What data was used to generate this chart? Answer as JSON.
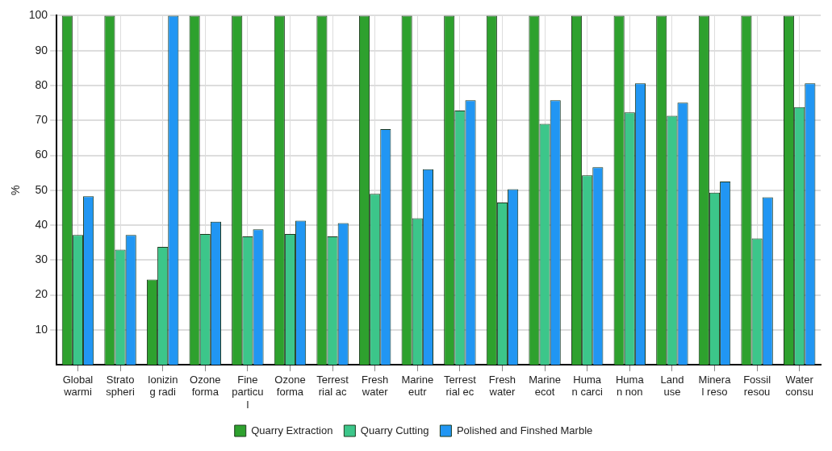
{
  "chart_data": {
    "type": "bar",
    "ylabel": "%",
    "categories": [
      "Global warmi",
      "Stratospheri",
      "Ionizing radi",
      "Ozone forma",
      "Fine particul",
      "Ozone forma",
      "Terrestrial ac",
      "Fresh water",
      "Marine eutr",
      "Terrestrial ec",
      "Fresh water",
      "Marine ecot",
      "Human carci",
      "Human non",
      "Land use",
      "Mineral reso",
      "Fossil resou",
      "Water consu"
    ],
    "series": [
      {
        "name": "Quarry Extraction",
        "color": "#2ea12e",
        "values": [
          100,
          100,
          24.4,
          100,
          100,
          100,
          100,
          100,
          100,
          100,
          100,
          100,
          100,
          100,
          100,
          100,
          100,
          100
        ]
      },
      {
        "name": "Quarry Cutting",
        "color": "#3cc68a",
        "values": [
          37.2,
          33,
          33.8,
          37.5,
          36.8,
          37.5,
          36.8,
          49,
          42,
          72.8,
          46.5,
          69,
          54.3,
          72.3,
          71.3,
          49.3,
          36.2,
          73.8
        ]
      },
      {
        "name": "Polished and Finshed Marble",
        "color": "#2196f3",
        "values": [
          48.3,
          37.2,
          100,
          41,
          38.8,
          41.3,
          40.6,
          67.5,
          56,
          75.8,
          50.3,
          75.8,
          56.6,
          80.6,
          75.1,
          52.5,
          48,
          80.6
        ]
      }
    ],
    "ylim": [
      0,
      100
    ],
    "yticks": [
      10,
      20,
      30,
      40,
      50,
      60,
      70,
      80,
      90,
      100
    ],
    "grid": true,
    "legend": "bottom"
  }
}
